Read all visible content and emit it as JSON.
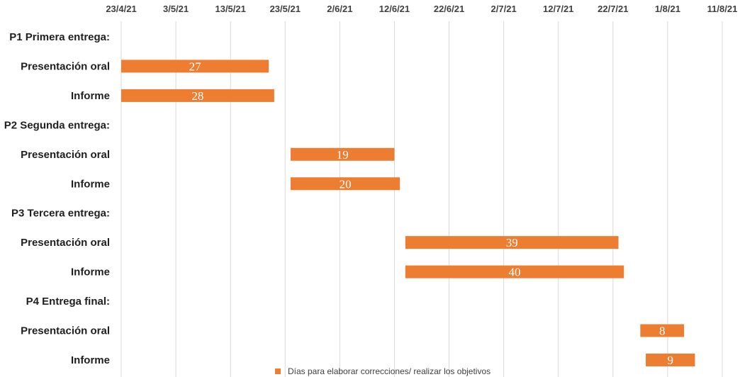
{
  "chart_data": {
    "type": "bar",
    "orientation": "horizontal",
    "x_ticks": [
      "23/4/21",
      "3/5/21",
      "13/5/21",
      "23/5/21",
      "2/6/21",
      "12/6/21",
      "22/6/21",
      "2/7/21",
      "12/7/21",
      "22/7/21",
      "1/8/21",
      "11/8/21"
    ],
    "xlim": [
      "2021-04-23",
      "2021-08-11"
    ],
    "grid": true,
    "legend_position": "bottom",
    "rows": [
      {
        "label": "P1 Primera entrega:",
        "header": true
      },
      {
        "label": "Presentación oral",
        "start": "2021-04-23",
        "end": "2021-05-20",
        "value": "27"
      },
      {
        "label": "Informe",
        "start": "2021-04-23",
        "end": "2021-05-21",
        "value": "28"
      },
      {
        "label": "P2 Segunda entrega:",
        "header": true
      },
      {
        "label": "Presentación oral",
        "start": "2021-05-24",
        "end": "2021-06-12",
        "value": "19"
      },
      {
        "label": "Informe",
        "start": "2021-05-24",
        "end": "2021-06-13",
        "value": "20"
      },
      {
        "label": "P3 Tercera entrega:",
        "header": true
      },
      {
        "label": "Presentación oral",
        "start": "2021-06-14",
        "end": "2021-07-23",
        "value": "39"
      },
      {
        "label": "Informe",
        "start": "2021-06-14",
        "end": "2021-07-24",
        "value": "40"
      },
      {
        "label": "P4 Entrega final:",
        "header": true
      },
      {
        "label": "Presentación oral",
        "start": "2021-07-27",
        "end": "2021-08-04",
        "value": "8"
      },
      {
        "label": "Informe",
        "start": "2021-07-28",
        "end": "2021-08-06",
        "value": "9"
      }
    ],
    "series": [
      {
        "name": "Días para elaborar correcciones/ realizar los objetivos",
        "color": "#ED7D31"
      }
    ]
  },
  "colors": {
    "bar": "#ED7D31",
    "grid": "#D9D9D9"
  }
}
